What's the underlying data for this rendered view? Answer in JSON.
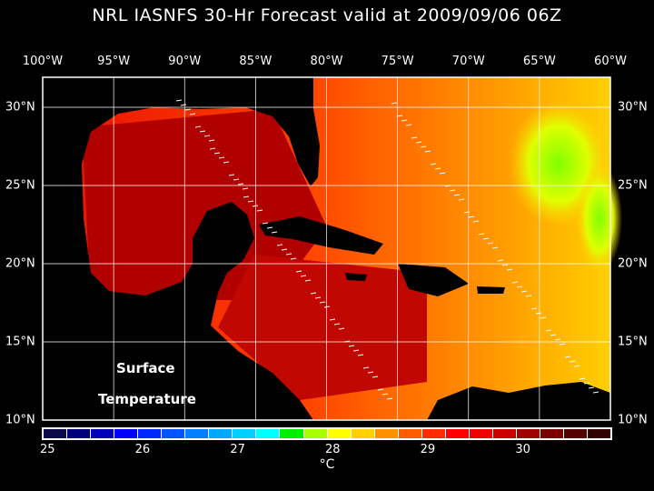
{
  "title": "NRL IASNFS  30-Hr Forecast valid at 2009/09/06 06Z",
  "lon_labels": [
    "100°W",
    "95°W",
    "90°W",
    "85°W",
    "80°W",
    "75°W",
    "70°W",
    "65°W",
    "60°W"
  ],
  "lon_values": [
    -100,
    -95,
    -90,
    -85,
    -80,
    -75,
    -70,
    -65,
    -60
  ],
  "lat_labels": [
    "30°N",
    "25°N",
    "20°N",
    "15°N",
    "10°N"
  ],
  "lat_values": [
    30,
    25,
    20,
    15,
    10
  ],
  "map_labels": {
    "line1": "Surface",
    "line2": "Temperature"
  },
  "colorbar": {
    "colors": [
      "#0a0a48",
      "#00007a",
      "#0000b8",
      "#0000f8",
      "#0028ff",
      "#0054ff",
      "#0080ff",
      "#00a8ff",
      "#00d0ff",
      "#00ffff",
      "#00ee00",
      "#a8ff00",
      "#ffff00",
      "#ffd000",
      "#ff9000",
      "#ff5a00",
      "#ff2c00",
      "#ff0000",
      "#f00000",
      "#cc0000",
      "#a00000",
      "#7a0000",
      "#540000",
      "#300000"
    ],
    "tick_labels": [
      "25",
      "26",
      "27",
      "28",
      "29",
      "30"
    ],
    "tick_values": [
      25,
      26,
      27,
      28,
      29,
      30
    ],
    "min": 24.94,
    "max": 30.94,
    "unit": "°C"
  },
  "colors": {
    "land": "#000000",
    "ocean_warm": "#e01800",
    "ocean_hot": "#a00000",
    "ocean_mild": "#ff7000",
    "grid": "#ffffff"
  }
}
